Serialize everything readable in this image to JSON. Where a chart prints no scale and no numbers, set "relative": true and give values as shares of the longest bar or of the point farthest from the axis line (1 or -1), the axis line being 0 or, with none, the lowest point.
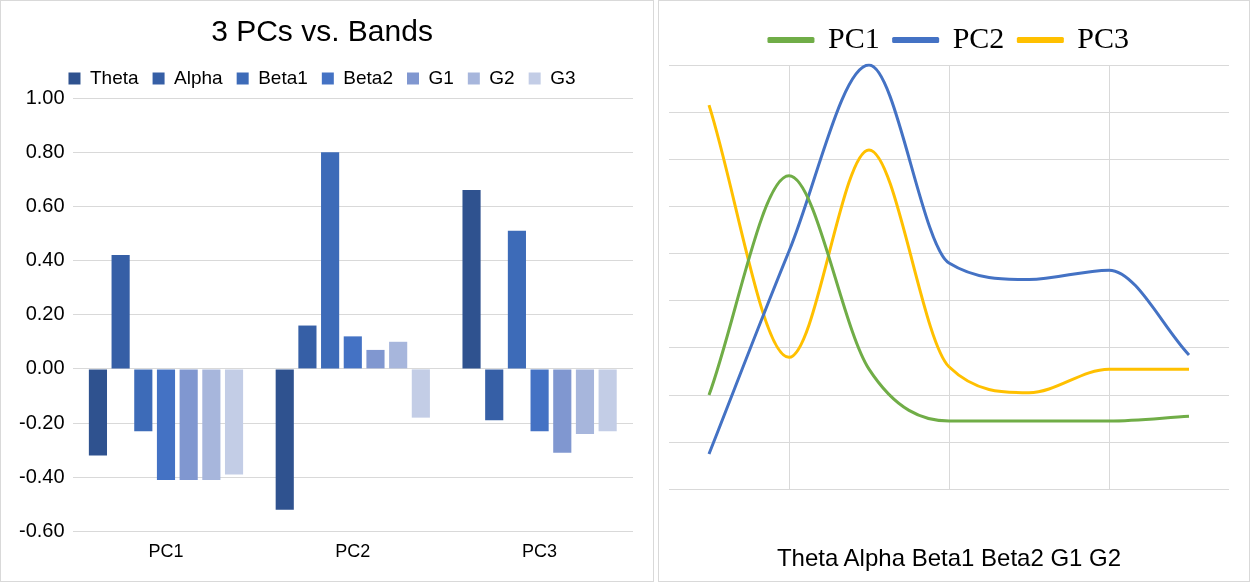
{
  "chart_data": [
    {
      "type": "bar",
      "title": "3 PCs vs. Bands",
      "categories": [
        "PC1",
        "PC2",
        "PC3"
      ],
      "series": [
        {
          "name": "Theta",
          "color": "#2f528f",
          "values": [
            -0.32,
            -0.52,
            0.66
          ]
        },
        {
          "name": "Alpha",
          "color": "#365fa6",
          "values": [
            0.42,
            0.16,
            -0.19
          ]
        },
        {
          "name": "Beta1",
          "color": "#3d6bb8",
          "values": [
            -0.23,
            0.8,
            0.51
          ]
        },
        {
          "name": "Beta2",
          "color": "#4472c4",
          "values": [
            -0.41,
            0.12,
            -0.23
          ]
        },
        {
          "name": "G1",
          "color": "#8097d0",
          "values": [
            -0.41,
            0.07,
            -0.31
          ]
        },
        {
          "name": "G2",
          "color": "#a7b6dc",
          "values": [
            -0.41,
            0.1,
            -0.24
          ]
        },
        {
          "name": "G3",
          "color": "#c3cde6",
          "values": [
            -0.39,
            -0.18,
            -0.23
          ]
        }
      ],
      "ylim": [
        -0.6,
        1.0
      ],
      "yticks": [
        {
          "value": -0.6,
          "label": "-0.60"
        },
        {
          "value": -0.4,
          "label": "-0.40"
        },
        {
          "value": -0.2,
          "label": "-0.20"
        },
        {
          "value": 0,
          "label": "0.00"
        },
        {
          "value": 0.2,
          "label": "0.20"
        },
        {
          "value": 0.4,
          "label": "0.40"
        },
        {
          "value": 0.6,
          "label": "0.60"
        },
        {
          "value": 0.8,
          "label": "0.80"
        },
        {
          "value": 1.0,
          "label": "1.00"
        }
      ],
      "grid": "y",
      "legend": "top"
    },
    {
      "type": "line",
      "relative": true,
      "categories": [
        null,
        null,
        null,
        null,
        null,
        null,
        null
      ],
      "series": [
        {
          "name": "PC1",
          "color": "#70ad47",
          "values": [
            -0.4,
            0.53,
            -0.29,
            -0.51,
            -0.51,
            -0.51,
            -0.49
          ]
        },
        {
          "name": "PC2",
          "color": "#4472c4",
          "values": [
            -0.65,
            0.21,
            1,
            0.16,
            0.09,
            0.13,
            -0.23
          ]
        },
        {
          "name": "PC3",
          "color": "#ffc000",
          "values": [
            0.83,
            -0.24,
            0.64,
            -0.28,
            -0.39,
            -0.29,
            -0.29
          ]
        }
      ],
      "annotations": [
        "Theta Alpha Beta1 Beta2 G1 G2"
      ],
      "grid": true,
      "legend": "top",
      "marker": "none"
    }
  ]
}
